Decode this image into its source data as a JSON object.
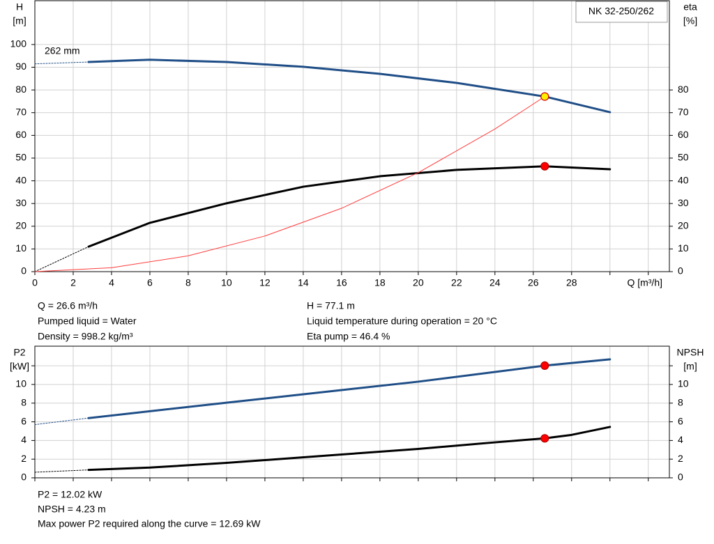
{
  "chart_data": [
    {
      "type": "line",
      "title": "NK 32-250/262",
      "annotation": "262 mm",
      "ylabel": "H",
      "yunit": "[m]",
      "y2label": "eta",
      "y2unit": "[%]",
      "xlabel": "Q [m³/h]",
      "xlim": [
        0,
        33.1
      ],
      "xticks": [
        0,
        2,
        4,
        6,
        8,
        10,
        12,
        14,
        16,
        18,
        20,
        22,
        24,
        26,
        28
      ],
      "xgrid": [
        30,
        32
      ],
      "ylim": [
        0,
        119.3
      ],
      "yticks": [
        0,
        10,
        20,
        30,
        40,
        50,
        60,
        70,
        80,
        90,
        100
      ],
      "y2lim": [
        0,
        119.3
      ],
      "y2ticks": [
        0,
        10,
        20,
        30,
        40,
        50,
        60,
        70,
        80
      ],
      "grid": true,
      "series": [
        {
          "color": "#1f4e87",
          "width": 3,
          "x": [
            2.8,
            6,
            10,
            14,
            18,
            22,
            26.6,
            30
          ],
          "values": [
            92.3,
            93.3,
            92.3,
            90.2,
            87.1,
            83.1,
            77.1,
            70.2
          ]
        },
        {
          "color": "#1f4e87",
          "width": 1,
          "dash": true,
          "x": [
            0,
            2.8
          ],
          "values": [
            91.5,
            92.3
          ]
        },
        {
          "color": "#000000",
          "width": 3,
          "axis": "y2",
          "x": [
            2.8,
            6,
            10,
            14,
            18,
            22,
            26.6,
            30
          ],
          "values": [
            11.0,
            21.5,
            30.1,
            37.4,
            42.0,
            44.8,
            46.4,
            45.1
          ]
        },
        {
          "color": "#000000",
          "width": 1,
          "dash": true,
          "axis": "y2",
          "x": [
            0,
            2.8
          ],
          "values": [
            0,
            11.0
          ]
        },
        {
          "color": "#ff3b3b",
          "width": 1,
          "x": [
            0,
            4,
            8,
            12,
            16,
            20,
            24,
            26.6
          ],
          "values": [
            0,
            1.74,
            6.97,
            15.7,
            27.9,
            43.6,
            62.8,
            77.1
          ]
        }
      ],
      "points": [
        {
          "x": 26.6,
          "y": 77.1,
          "color": "#ffee00"
        },
        {
          "x": 26.6,
          "y": 46.4,
          "color": "#ff0000",
          "axis": "y2"
        }
      ]
    },
    {
      "type": "line",
      "ylabel": "P2",
      "yunit": "[kW]",
      "y2label": "NPSH",
      "y2unit": "[m]",
      "xlim": [
        0,
        33.1
      ],
      "xgrid": [
        0,
        2,
        4,
        6,
        8,
        10,
        12,
        14,
        16,
        18,
        20,
        22,
        24,
        26,
        28,
        30,
        32
      ],
      "ylim": [
        0,
        14.1
      ],
      "yticks": [
        0,
        2,
        4,
        6,
        8,
        10
      ],
      "ygrid": [
        12
      ],
      "y2lim": [
        0,
        14.1
      ],
      "y2ticks": [
        0,
        2,
        4,
        6,
        8,
        10
      ],
      "grid": true,
      "series": [
        {
          "color": "#1f4e87",
          "width": 3,
          "x": [
            2.8,
            10,
            16,
            20,
            26.6,
            30
          ],
          "values": [
            6.4,
            8.05,
            9.4,
            10.3,
            12.02,
            12.69
          ]
        },
        {
          "color": "#1f4e87",
          "width": 1,
          "dash": true,
          "x": [
            0,
            2.8
          ],
          "values": [
            5.7,
            6.4
          ]
        },
        {
          "color": "#000000",
          "width": 3,
          "axis": "y2",
          "x": [
            2.8,
            6,
            10,
            16,
            20,
            24,
            26.6,
            28,
            30
          ],
          "values": [
            0.85,
            1.1,
            1.6,
            2.5,
            3.1,
            3.8,
            4.23,
            4.6,
            5.45
          ]
        },
        {
          "color": "#000000",
          "width": 1,
          "dash": true,
          "axis": "y2",
          "x": [
            0,
            2.8
          ],
          "values": [
            0.6,
            0.85
          ]
        }
      ],
      "points": [
        {
          "x": 26.6,
          "y": 12.02,
          "color": "#ff0000"
        },
        {
          "x": 26.6,
          "y": 4.23,
          "color": "#ff0000",
          "axis": "y2"
        }
      ]
    }
  ],
  "info_top": [
    [
      "Q = 26.6 m³/h",
      "Pumped liquid = Water",
      "Density = 998.2 kg/m³"
    ],
    [
      "H = 77.1 m",
      "Liquid temperature during operation = 20 °C",
      "Eta pump = 46.4 %"
    ]
  ],
  "info_bottom": [
    "P2 = 12.02 kW",
    "NPSH = 4.23 m",
    "Max power P2 required along the curve = 12.69 kW"
  ]
}
